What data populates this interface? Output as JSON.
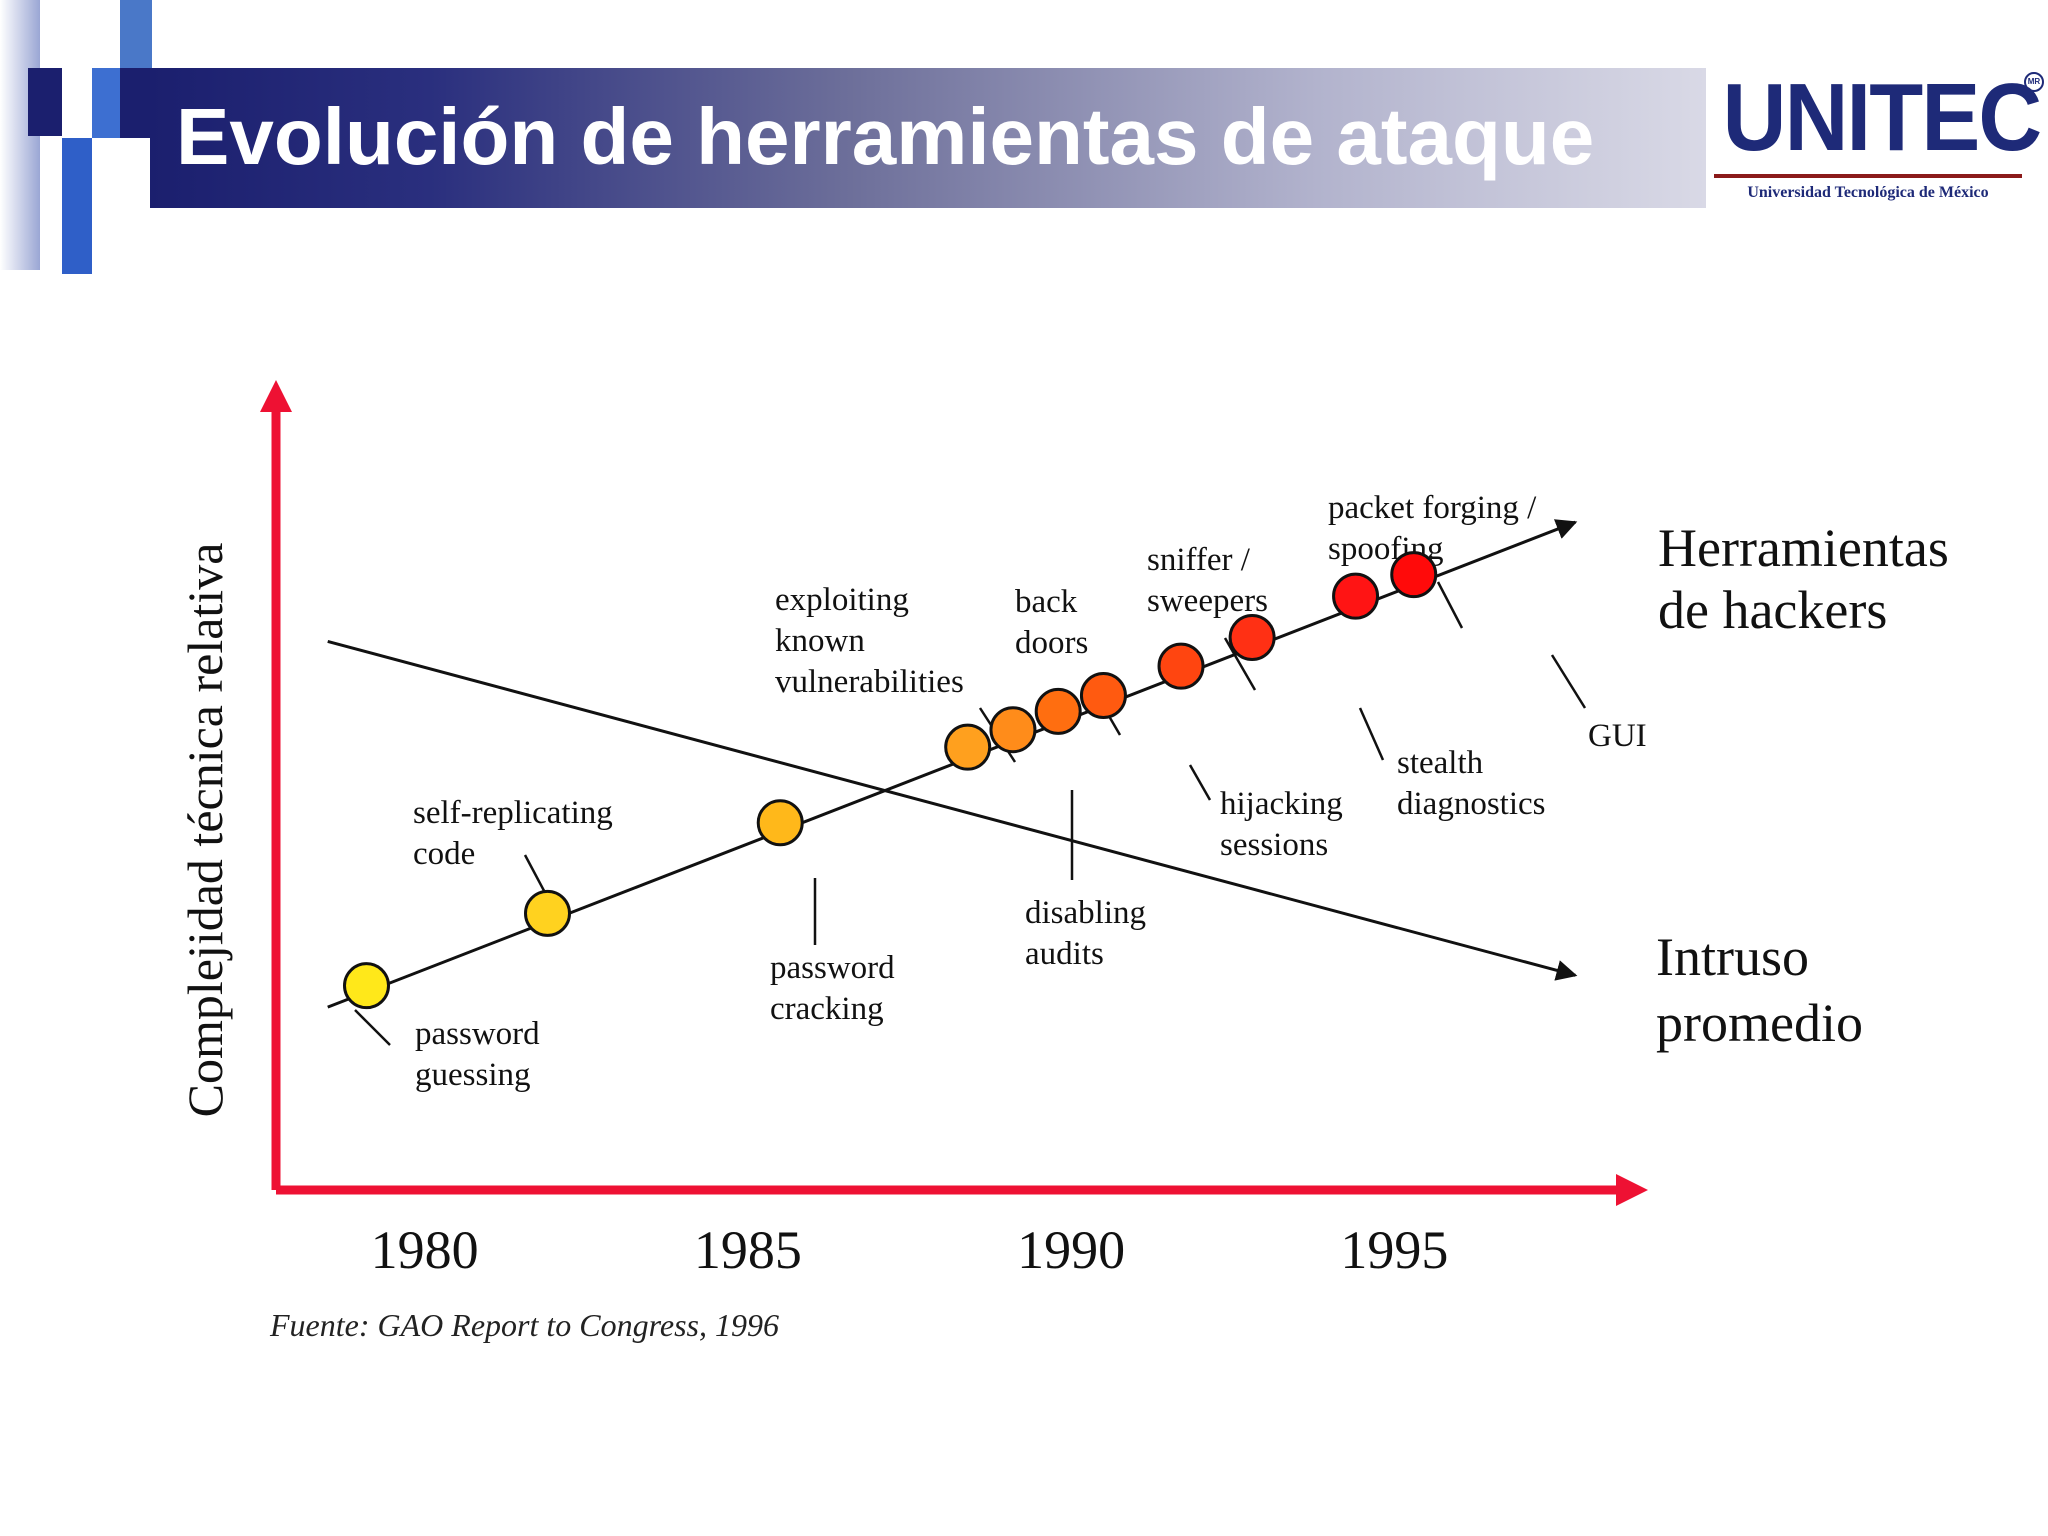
{
  "slide": {
    "title": "Evolución de herramientas de ataque",
    "logo": {
      "name": "UNITEC",
      "mark": "MR",
      "subtitle": "Universidad Tecnológica de México"
    },
    "source": "Fuente: GAO Report to Congress, 1996"
  },
  "colors": {
    "header_dark": "#1b1f6e",
    "header_light": "#d9d9e6",
    "axis": "#ee1133",
    "logo": "#1e2a78"
  },
  "chart_data": {
    "type": "line",
    "ylabel": "Complejidad técnica relativa",
    "xlabel": "",
    "xticks": [
      "1980",
      "1985",
      "1990",
      "1995"
    ],
    "xlim": [
      1977.7,
      1998.8
    ],
    "ylim": [
      0,
      100
    ],
    "grid": false,
    "series": [
      {
        "name": "Herramientas de hackers",
        "start": {
          "x": 1978.5,
          "y": 23
        },
        "end": {
          "x": 1997.8,
          "y": 84
        },
        "points": [
          {
            "x": 1979.1,
            "y": 25.7,
            "color": "#ffe81a",
            "labels": [
              "password",
              "guessing"
            ]
          },
          {
            "x": 1981.9,
            "y": 34.8,
            "color": "#ffd21f",
            "labels": [
              "self-replicating",
              "code"
            ]
          },
          {
            "x": 1985.5,
            "y": 46.2,
            "color": "#ffb81a",
            "labels": [
              "password",
              "cracking"
            ]
          },
          {
            "x": 1988.4,
            "y": 55.7,
            "color": "#ffa01e",
            "labels": [
              "exploiting",
              "known",
              "vulnerabilities"
            ]
          },
          {
            "x": 1989.1,
            "y": 57.9,
            "color": "#ff8c1a",
            "labels": [
              "disabling",
              "audits"
            ]
          },
          {
            "x": 1989.8,
            "y": 60.2,
            "color": "#ff6e10",
            "labels": [
              "back",
              "doors"
            ]
          },
          {
            "x": 1990.5,
            "y": 62.2,
            "color": "#ff5a10",
            "labels": [
              "hijacking",
              "sessions"
            ]
          },
          {
            "x": 1991.7,
            "y": 65.9,
            "color": "#ff4510",
            "labels": [
              "sniffer /",
              "sweepers"
            ]
          },
          {
            "x": 1992.8,
            "y": 69.5,
            "color": "#ff3014",
            "labels": [
              "stealth",
              "diagnostics"
            ]
          },
          {
            "x": 1994.4,
            "y": 74.7,
            "color": "#ff1414",
            "labels": [
              "packet forging /",
              "spoofing"
            ]
          },
          {
            "x": 1995.3,
            "y": 77.4,
            "color": "#ff0a0a",
            "labels": [
              "GUI"
            ]
          }
        ]
      },
      {
        "name": "Intruso promedio",
        "start": {
          "x": 1978.5,
          "y": 69
        },
        "end": {
          "x": 1997.8,
          "y": 27
        }
      }
    ],
    "series_labels": [
      {
        "lines": [
          "Herramientas",
          "de hackers"
        ]
      },
      {
        "lines": [
          "Intruso",
          "promedio"
        ]
      }
    ]
  }
}
